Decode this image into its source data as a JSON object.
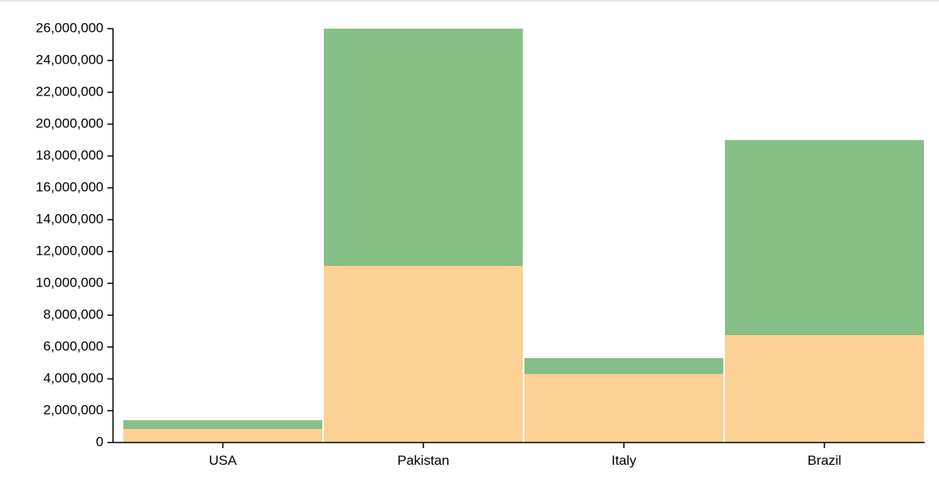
{
  "chart_data": {
    "type": "bar",
    "stacked": true,
    "categories": [
      "USA",
      "Pakistan",
      "Italy",
      "Brazil"
    ],
    "series": [
      {
        "values": [
          850000,
          11100000,
          4300000,
          6750000
        ],
        "color": "#fdd093"
      },
      {
        "values": [
          550000,
          14900000,
          1000000,
          12250000
        ],
        "color": "#86bf87"
      }
    ],
    "totals": [
      1400000,
      26000000,
      5300000,
      19000000
    ],
    "ylim": [
      0,
      26000000
    ],
    "yticks": [
      0,
      2000000,
      4000000,
      6000000,
      8000000,
      10000000,
      12000000,
      14000000,
      16000000,
      18000000,
      20000000,
      22000000,
      24000000,
      26000000
    ],
    "ytick_labels": [
      "0",
      "2,000,000",
      "4,000,000",
      "6,000,000",
      "8,000,000",
      "10,000,000",
      "12,000,000",
      "14,000,000",
      "16,000,000",
      "18,000,000",
      "20,000,000",
      "22,000,000",
      "24,000,000",
      "26,000,000"
    ],
    "title": "",
    "xlabel": "",
    "ylabel": "",
    "grid": false,
    "legend": false
  }
}
